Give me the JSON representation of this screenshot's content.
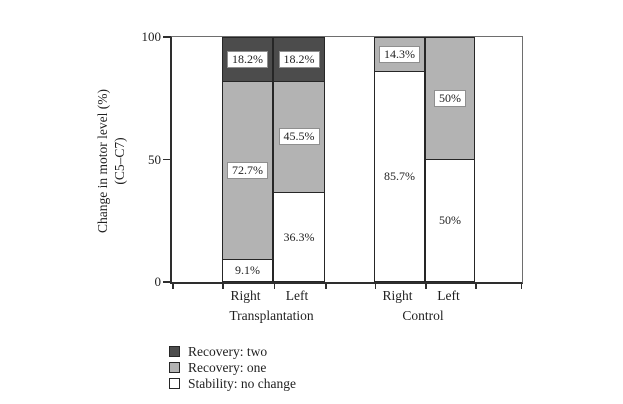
{
  "chart_data": {
    "type": "bar",
    "stacked": true,
    "title": "",
    "ylabel": "Change in motor level (%)",
    "ylabel_sub": "(C5–C7)",
    "ylim": [
      0,
      100
    ],
    "yticks": [
      0,
      50,
      100
    ],
    "grid": false,
    "legend_position": "bottom-left",
    "group_labels": [
      "Transplantation",
      "Control"
    ],
    "groups": [
      {
        "label": "Transplantation",
        "bars": [
          {
            "label": "Right",
            "segments": [
              {
                "series": "Stability: no change",
                "value": 9.1,
                "text": "9.1%"
              },
              {
                "series": "Recovery: one",
                "value": 72.7,
                "text": "72.7%"
              },
              {
                "series": "Recovery: two",
                "value": 18.2,
                "text": "18.2%"
              }
            ]
          },
          {
            "label": "Left",
            "segments": [
              {
                "series": "Stability: no change",
                "value": 36.3,
                "text": "36.3%"
              },
              {
                "series": "Recovery: one",
                "value": 45.5,
                "text": "45.5%"
              },
              {
                "series": "Recovery: two",
                "value": 18.2,
                "text": "18.2%"
              }
            ]
          }
        ]
      },
      {
        "label": "Control",
        "bars": [
          {
            "label": "Right",
            "segments": [
              {
                "series": "Stability: no change",
                "value": 85.7,
                "text": "85.7%"
              },
              {
                "series": "Recovery: one",
                "value": 14.3,
                "text": "14.3%"
              }
            ]
          },
          {
            "label": "Left",
            "segments": [
              {
                "series": "Stability: no change",
                "value": 50,
                "text": "50%"
              },
              {
                "series": "Recovery: one",
                "value": 50,
                "text": "50%"
              }
            ]
          }
        ]
      }
    ],
    "legend": [
      {
        "label": "Recovery: two",
        "color": "#4c4c4c"
      },
      {
        "label": "Recovery: one",
        "color": "#b3b3b3"
      },
      {
        "label": "Stability: no change",
        "color": "#ffffff"
      }
    ],
    "colors": {
      "Recovery: two": "#4c4c4c",
      "Recovery: one": "#b3b3b3",
      "Stability: no change": "#ffffff"
    }
  }
}
